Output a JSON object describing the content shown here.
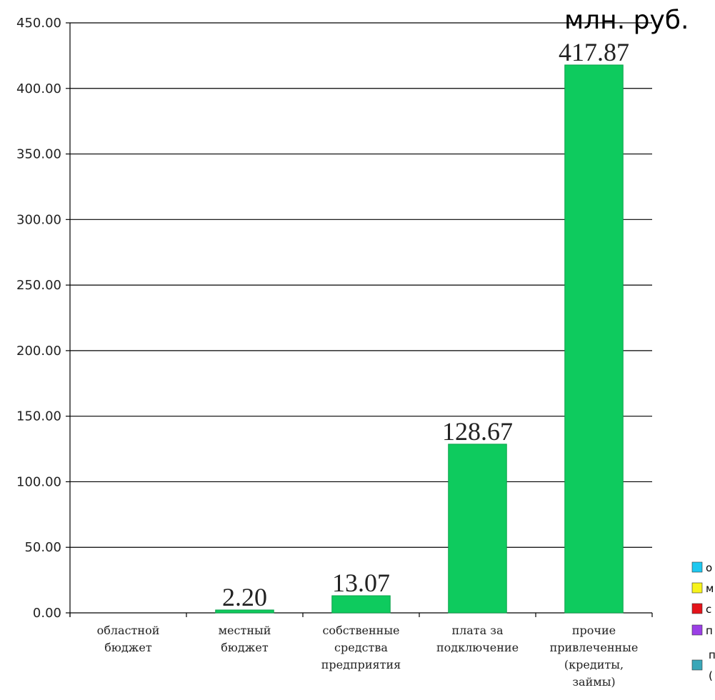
{
  "chart_data": {
    "type": "bar",
    "unit_label": "млн. руб.",
    "categories": [
      [
        "областной",
        "бюджет"
      ],
      [
        "местный",
        "бюджет"
      ],
      [
        "собственные",
        "средства",
        "предприятия"
      ],
      [
        "плата за",
        "подключение"
      ],
      [
        "прочие",
        "привлеченные",
        "(кредиты,",
        "займы)"
      ]
    ],
    "values": [
      0,
      2.2,
      13.07,
      128.67,
      417.87
    ],
    "value_labels": [
      "",
      "2.20",
      "13.07",
      "128.67",
      "417.87"
    ],
    "ylim": [
      0,
      450
    ],
    "yticks": [
      0,
      50,
      100,
      150,
      200,
      250,
      300,
      350,
      400,
      450
    ],
    "ytick_labels": [
      "0.00",
      "50.00",
      "100.00",
      "150.00",
      "200.00",
      "250.00",
      "300.00",
      "350.00",
      "400.00",
      "450.00"
    ],
    "grid": true,
    "bar_color": "#0ecb5e",
    "legend_position": "bottom-right",
    "legend": [
      {
        "label": "о",
        "color": "#1ec8f0"
      },
      {
        "label": "м",
        "color": "#f7f31c"
      },
      {
        "label": "с",
        "color": "#e4131a"
      },
      {
        "label": "п",
        "color": "#9b3fe6"
      },
      {
        "label": "п",
        "label2": "(",
        "color": "#3aa7b8"
      }
    ]
  }
}
